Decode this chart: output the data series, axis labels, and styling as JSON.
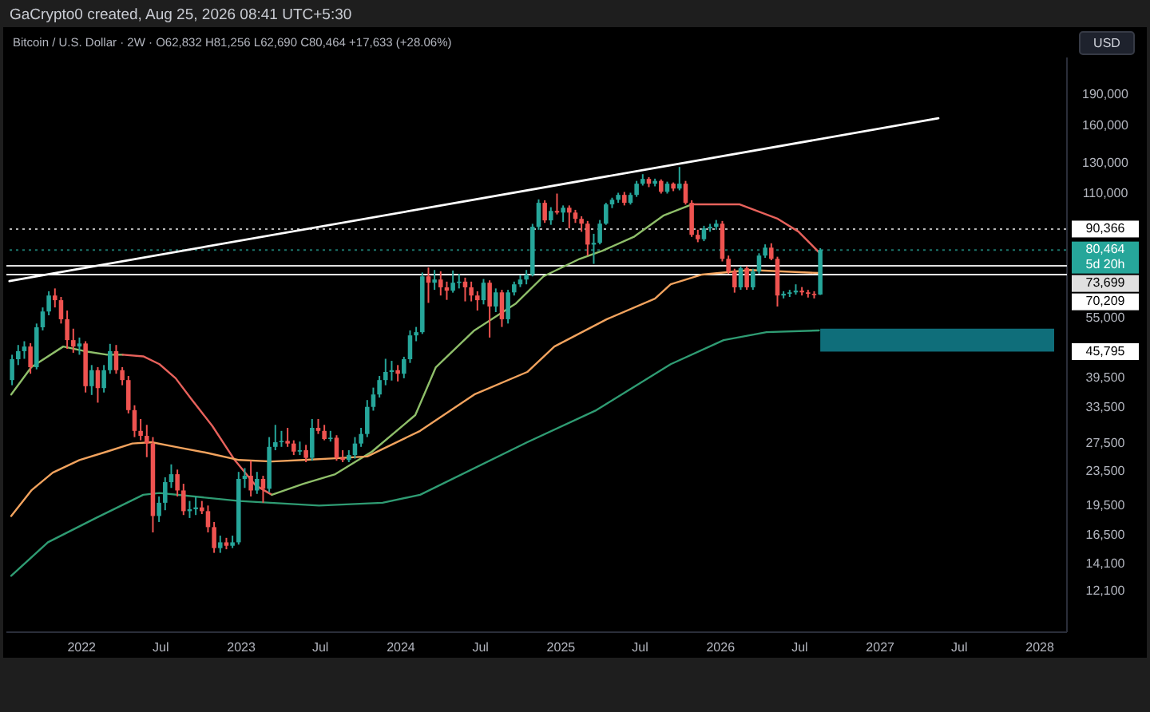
{
  "chart_data": {
    "type": "candlestick",
    "title": "GaCrypto0 created, Aug 25, 2026 08:41 UTC+5:30",
    "subtitle": "Bitcoin / U.S. Dollar · 2W · O62,832 H81,256 L62,690 C80,464 +17,633 (+28.06%)",
    "log": "y",
    "xlim": [
      "2021-07-13",
      "2028-03-03"
    ],
    "xticks": [
      {
        "value": "2022-01-01",
        "label": "2022"
      },
      {
        "value": "2022-07-01",
        "label": "Jul"
      },
      {
        "value": "2023-01-01",
        "label": "2023"
      },
      {
        "value": "2023-07-01",
        "label": "Jul"
      },
      {
        "value": "2024-01-01",
        "label": "2024"
      },
      {
        "value": "2024-07-01",
        "label": "Jul"
      },
      {
        "value": "2025-01-01",
        "label": "2025"
      },
      {
        "value": "2025-07-01",
        "label": "Jul"
      },
      {
        "value": "2026-01-01",
        "label": "2026"
      },
      {
        "value": "2026-07-01",
        "label": "Jul"
      },
      {
        "value": "2027-01-01",
        "label": "2027"
      },
      {
        "value": "2027-07-01",
        "label": "Jul"
      },
      {
        "value": "2028-01-01",
        "label": "2028"
      }
    ],
    "ylim": [
      9660,
      234000
    ],
    "yticks": [
      {
        "value": 190000,
        "label": "190,000"
      },
      {
        "value": 160000,
        "label": "160,000"
      },
      {
        "value": 130000,
        "label": "130,000"
      },
      {
        "value": 110000,
        "label": "110,000"
      },
      {
        "value": 55000,
        "label": "55,000"
      },
      {
        "value": 39500,
        "label": "39,500"
      },
      {
        "value": 33500,
        "label": "33,500"
      },
      {
        "value": 27500,
        "label": "27,500"
      },
      {
        "value": 23500,
        "label": "23,500"
      },
      {
        "value": 19500,
        "label": "19,500"
      },
      {
        "value": 16500,
        "label": "16,500"
      },
      {
        "value": 14100,
        "label": "14,100"
      },
      {
        "value": 12100,
        "label": "12,100"
      }
    ],
    "x": [
      "2021-07-26",
      "2021-08-09",
      "2021-08-23",
      "2021-09-06",
      "2021-09-20",
      "2021-10-04",
      "2021-10-18",
      "2021-11-01",
      "2021-11-15",
      "2021-11-29",
      "2021-12-13",
      "2021-12-27",
      "2022-01-10",
      "2022-01-24",
      "2022-02-07",
      "2022-02-21",
      "2022-03-07",
      "2022-03-21",
      "2022-04-04",
      "2022-04-18",
      "2022-05-02",
      "2022-05-16",
      "2022-05-30",
      "2022-06-13",
      "2022-06-27",
      "2022-07-11",
      "2022-07-25",
      "2022-08-08",
      "2022-08-22",
      "2022-09-05",
      "2022-09-19",
      "2022-10-03",
      "2022-10-17",
      "2022-10-31",
      "2022-11-14",
      "2022-11-28",
      "2022-12-12",
      "2022-12-26",
      "2023-01-09",
      "2023-01-23",
      "2023-02-06",
      "2023-02-20",
      "2023-03-06",
      "2023-03-20",
      "2023-04-03",
      "2023-04-17",
      "2023-05-01",
      "2023-05-15",
      "2023-05-29",
      "2023-06-12",
      "2023-06-26",
      "2023-07-10",
      "2023-07-24",
      "2023-08-07",
      "2023-08-21",
      "2023-09-04",
      "2023-09-18",
      "2023-10-02",
      "2023-10-16",
      "2023-10-30",
      "2023-11-13",
      "2023-11-27",
      "2023-12-11",
      "2023-12-25",
      "2024-01-08",
      "2024-01-22",
      "2024-02-05",
      "2024-02-19",
      "2024-03-04",
      "2024-03-18",
      "2024-04-01",
      "2024-04-15",
      "2024-04-29",
      "2024-05-13",
      "2024-05-27",
      "2024-06-10",
      "2024-06-24",
      "2024-07-08",
      "2024-07-22",
      "2024-08-05",
      "2024-08-19",
      "2024-09-02",
      "2024-09-16",
      "2024-09-30",
      "2024-10-14",
      "2024-10-28",
      "2024-11-11",
      "2024-11-25",
      "2024-12-09",
      "2024-12-23",
      "2025-01-06",
      "2025-01-20",
      "2025-02-03",
      "2025-02-17",
      "2025-03-03",
      "2025-03-17",
      "2025-03-31",
      "2025-04-14",
      "2025-04-28",
      "2025-05-12",
      "2025-05-26",
      "2025-06-09",
      "2025-06-23",
      "2025-07-07",
      "2025-07-21",
      "2025-08-04",
      "2025-08-18",
      "2025-09-01",
      "2025-09-15",
      "2025-09-29",
      "2025-10-13",
      "2025-10-27",
      "2025-11-10",
      "2025-11-24",
      "2025-12-08",
      "2025-12-22",
      "2026-01-05",
      "2026-01-19",
      "2026-02-02",
      "2026-02-16",
      "2026-03-02",
      "2026-03-16",
      "2026-03-30",
      "2026-04-13",
      "2026-04-27",
      "2026-05-11",
      "2026-05-25",
      "2026-06-08",
      "2026-06-22",
      "2026-07-06",
      "2026-07-20",
      "2026-08-03",
      "2026-08-17"
    ],
    "colors": [
      "#26a69a",
      "#26a69a",
      "#26a69a",
      "#ef5350",
      "#26a69a",
      "#26a69a",
      "#26a69a",
      "#ef5350",
      "#ef5350",
      "#ef5350",
      "#ef5350",
      "#26a69a",
      "#ef5350",
      "#26a69a",
      "#ef5350",
      "#26a69a",
      "#26a69a",
      "#ef5350",
      "#ef5350",
      "#ef5350",
      "#ef5350",
      "#ef5350",
      "#ef5350",
      "#ef5350",
      "#26a69a",
      "#26a69a",
      "#26a69a",
      "#ef5350",
      "#ef5350",
      "#26a69a",
      "#26a69a",
      "#ef5350",
      "#ef5350",
      "#ef5350",
      "#26a69a",
      "#ef5350",
      "#26a69a",
      "#26a69a",
      "#26a69a",
      "#ef5350",
      "#26a69a",
      "#ef5350",
      "#26a69a",
      "#26a69a",
      "#26a69a",
      "#ef5350",
      "#ef5350",
      "#26a69a",
      "#ef5350",
      "#26a69a",
      "#ef5350",
      "#ef5350",
      "#26a69a",
      "#ef5350",
      "#ef5350",
      "#26a69a",
      "#26a69a",
      "#26a69a",
      "#26a69a",
      "#26a69a",
      "#26a69a",
      "#26a69a",
      "#26a69a",
      "#ef5350",
      "#26a69a",
      "#26a69a",
      "#26a69a",
      "#26a69a",
      "#ef5350",
      "#26a69a",
      "#ef5350",
      "#ef5350",
      "#26a69a",
      "#26a69a",
      "#ef5350",
      "#ef5350",
      "#ef5350",
      "#26a69a",
      "#ef5350",
      "#26a69a",
      "#ef5350",
      "#26a69a",
      "#26a69a",
      "#26a69a",
      "#26a69a",
      "#26a69a",
      "#26a69a",
      "#ef5350",
      "#26a69a",
      "#ef5350",
      "#26a69a",
      "#ef5350",
      "#ef5350",
      "#ef5350",
      "#ef5350",
      "#26a69a",
      "#26a69a",
      "#26a69a",
      "#26a69a",
      "#26a69a",
      "#ef5350",
      "#26a69a",
      "#26a69a",
      "#26a69a",
      "#ef5350",
      "#26a69a",
      "#ef5350",
      "#26a69a",
      "#ef5350",
      "#26a69a",
      "#ef5350",
      "#ef5350",
      "#ef5350",
      "#26a69a",
      "#26a69a",
      "#26a69a",
      "#ef5350",
      "#ef5350",
      "#ef5350",
      "#26a69a",
      "#ef5350",
      "#26a69a",
      "#26a69a",
      "#26a69a",
      "#ef5350",
      "#ef5350",
      "#26a69a",
      "#26a69a",
      "#26a69a",
      "#ef5350",
      "#ef5350",
      "#ef5350",
      "#26a69a"
    ],
    "ohlc": [
      [
        39100,
        45000,
        38000,
        43900
      ],
      [
        43900,
        47500,
        42500,
        45900
      ],
      [
        45900,
        48500,
        44000,
        47100
      ],
      [
        47100,
        48000,
        40500,
        42000
      ],
      [
        42000,
        53500,
        41500,
        52400
      ],
      [
        52400,
        58500,
        51500,
        57200
      ],
      [
        57200,
        64000,
        56000,
        62500
      ],
      [
        62500,
        65000,
        58500,
        60900
      ],
      [
        60900,
        62000,
        53500,
        54800
      ],
      [
        54800,
        57500,
        46500,
        48800
      ],
      [
        48800,
        52000,
        45500,
        47100
      ],
      [
        47100,
        49500,
        45000,
        47900
      ],
      [
        47900,
        48500,
        36500,
        37800
      ],
      [
        37800,
        42500,
        36000,
        41300
      ],
      [
        41300,
        42000,
        34500,
        37400
      ],
      [
        37400,
        42500,
        36500,
        41300
      ],
      [
        41300,
        47800,
        40500,
        45900
      ],
      [
        45900,
        47500,
        40500,
        41300
      ],
      [
        41300,
        42000,
        38000,
        39100
      ],
      [
        39100,
        40000,
        32500,
        33100
      ],
      [
        33100,
        34000,
        28500,
        29500
      ],
      [
        29500,
        31500,
        28000,
        28700
      ],
      [
        28700,
        30500,
        25500,
        27500
      ],
      [
        27500,
        28500,
        16800,
        18400
      ],
      [
        18400,
        20500,
        17800,
        19800
      ],
      [
        19800,
        22800,
        19000,
        22200
      ],
      [
        22200,
        24500,
        21500,
        23200
      ],
      [
        23200,
        23800,
        20500,
        21200
      ],
      [
        21200,
        22000,
        18500,
        18900
      ],
      [
        18900,
        20000,
        18200,
        19100
      ],
      [
        19100,
        20500,
        18500,
        19300
      ],
      [
        19300,
        20000,
        18600,
        18900
      ],
      [
        18900,
        19500,
        16800,
        17300
      ],
      [
        17300,
        17800,
        15000,
        15400
      ],
      [
        15400,
        16500,
        15000,
        15900
      ],
      [
        15900,
        16300,
        15300,
        15600
      ],
      [
        15600,
        16500,
        15400,
        15900
      ],
      [
        15900,
        23500,
        15700,
        22600
      ],
      [
        22600,
        24000,
        21500,
        23000
      ],
      [
        23000,
        25000,
        20500,
        21200
      ],
      [
        21200,
        23500,
        20800,
        22600
      ],
      [
        22600,
        23000,
        19800,
        21400
      ],
      [
        21400,
        28500,
        21000,
        27000
      ],
      [
        27000,
        30500,
        26500,
        27700
      ],
      [
        27700,
        29500,
        27000,
        27900
      ],
      [
        27900,
        30000,
        27000,
        27500
      ],
      [
        27500,
        28000,
        25800,
        26300
      ],
      [
        26300,
        27800,
        25800,
        26500
      ],
      [
        26500,
        27300,
        24800,
        25400
      ],
      [
        25400,
        31500,
        25000,
        30000
      ],
      [
        30000,
        31500,
        29000,
        29500
      ],
      [
        29500,
        30500,
        28000,
        28200
      ],
      [
        28200,
        29500,
        27800,
        28400
      ],
      [
        28400,
        28800,
        25000,
        25400
      ],
      [
        25400,
        26500,
        24800,
        25100
      ],
      [
        25100,
        26500,
        24800,
        25800
      ],
      [
        25800,
        28500,
        25300,
        27500
      ],
      [
        27500,
        30000,
        27000,
        29000
      ],
      [
        29000,
        35000,
        28500,
        33700
      ],
      [
        33700,
        37500,
        33000,
        36100
      ],
      [
        36100,
        40000,
        35500,
        39100
      ],
      [
        39100,
        44000,
        38000,
        40900
      ],
      [
        40900,
        43500,
        39000,
        41300
      ],
      [
        41300,
        42500,
        38800,
        40500
      ],
      [
        40500,
        44500,
        39500,
        43900
      ],
      [
        43900,
        51500,
        43000,
        50100
      ],
      [
        50100,
        52500,
        48500,
        51000
      ],
      [
        51000,
        71000,
        50500,
        69500
      ],
      [
        69500,
        73000,
        60000,
        67100
      ],
      [
        67100,
        72000,
        64500,
        68300
      ],
      [
        68300,
        71500,
        62500,
        65400
      ],
      [
        65400,
        67500,
        61000,
        64200
      ],
      [
        64200,
        71800,
        63500,
        67100
      ],
      [
        67100,
        70500,
        65000,
        67500
      ],
      [
        67500,
        69000,
        60500,
        65400
      ],
      [
        65400,
        67500,
        60500,
        62500
      ],
      [
        62500,
        64000,
        57500,
        60900
      ],
      [
        60900,
        68500,
        59500,
        67100
      ],
      [
        67100,
        68000,
        49500,
        58800
      ],
      [
        58800,
        65000,
        57000,
        63600
      ],
      [
        63600,
        64500,
        52500,
        54800
      ],
      [
        54800,
        64500,
        53500,
        63600
      ],
      [
        63600,
        67500,
        62500,
        66500
      ],
      [
        66500,
        70000,
        65500,
        68300
      ],
      [
        68300,
        72000,
        66500,
        70200
      ],
      [
        70200,
        93000,
        69500,
        91500
      ],
      [
        91500,
        106500,
        90000,
        104500
      ],
      [
        104500,
        106000,
        93500,
        94800
      ],
      [
        94800,
        102000,
        92500,
        99900
      ],
      [
        99900,
        110000,
        98000,
        99000
      ],
      [
        99000,
        103000,
        94000,
        101700
      ],
      [
        101700,
        103000,
        90700,
        99000
      ],
      [
        99000,
        100500,
        93500,
        95600
      ],
      [
        95600,
        97000,
        89000,
        93100
      ],
      [
        93100,
        94500,
        78000,
        82900
      ],
      [
        82900,
        88000,
        74500,
        83700
      ],
      [
        83700,
        95000,
        83000,
        93100
      ],
      [
        93100,
        104500,
        92500,
        103600
      ],
      [
        103600,
        107500,
        101500,
        106300
      ],
      [
        106300,
        110500,
        104500,
        109200
      ],
      [
        109200,
        111000,
        103000,
        104500
      ],
      [
        104500,
        110500,
        103500,
        109200
      ],
      [
        109200,
        118000,
        108000,
        116200
      ],
      [
        116200,
        122500,
        115000,
        119300
      ],
      [
        119300,
        120500,
        114000,
        116200
      ],
      [
        116200,
        119500,
        114500,
        118000
      ],
      [
        118000,
        119000,
        110000,
        111100
      ],
      [
        111100,
        117500,
        110000,
        116200
      ],
      [
        116200,
        117000,
        111500,
        113100
      ],
      [
        113100,
        127500,
        112000,
        116200
      ],
      [
        116200,
        118000,
        103500,
        104500
      ],
      [
        104500,
        106000,
        86500,
        87500
      ],
      [
        87500,
        90000,
        84000,
        85400
      ],
      [
        85400,
        92000,
        84500,
        90700
      ],
      [
        90700,
        93000,
        89000,
        91500
      ],
      [
        91500,
        95000,
        90000,
        93100
      ],
      [
        93100,
        94500,
        75500,
        76600
      ],
      [
        76600,
        78000,
        70500,
        71400
      ],
      [
        71400,
        72500,
        63500,
        65400
      ],
      [
        65400,
        73500,
        64500,
        72700
      ],
      [
        72700,
        73500,
        64500,
        65400
      ],
      [
        65400,
        72500,
        64500,
        71400
      ],
      [
        71400,
        79000,
        70500,
        78000
      ],
      [
        78000,
        83000,
        77000,
        81500
      ],
      [
        81500,
        83500,
        76000,
        76600
      ],
      [
        76600,
        77500,
        58800,
        62500
      ],
      [
        62500,
        64000,
        61500,
        63100
      ],
      [
        63100,
        64500,
        62000,
        63600
      ],
      [
        63600,
        66500,
        62800,
        64200
      ],
      [
        64200,
        65500,
        62500,
        63600
      ],
      [
        63600,
        64500,
        61800,
        63100
      ],
      [
        63100,
        64000,
        61500,
        62831
      ],
      [
        62832,
        81256,
        62690,
        80464
      ]
    ],
    "series": [
      {
        "type": "line",
        "color": "#8fbf6a",
        "x": [
          "2021-07-24",
          "2021-09-08",
          "2021-11-20",
          "2022-01-08",
          "2022-02-28",
          "2022-04-05"
        ],
        "values": [
          36100,
          42000,
          47100,
          45900,
          45000,
          45000
        ]
      },
      {
        "type": "line",
        "color": "#e8625c",
        "x": [
          "2022-04-05",
          "2022-05-22",
          "2022-06-28",
          "2022-08-04",
          "2022-09-09",
          "2022-10-27",
          "2022-12-17",
          "2023-02-03",
          "2023-03-12"
        ],
        "values": [
          45000,
          44600,
          42700,
          39500,
          35200,
          30300,
          25100,
          21800,
          20700
        ]
      },
      {
        "type": "line",
        "color": "#8fbf6a",
        "x": [
          "2023-03-12",
          "2023-05-23",
          "2023-08-04",
          "2023-10-27",
          "2024-02-03",
          "2024-03-21",
          "2024-06-17",
          "2024-09-20",
          "2024-11-22",
          "2025-02-13",
          "2025-04-06",
          "2025-06-18",
          "2025-08-23",
          "2025-10-27"
        ],
        "values": [
          20700,
          22000,
          23200,
          26300,
          32200,
          42000,
          51500,
          59800,
          69500,
          76600,
          80100,
          86700,
          97300,
          103600
        ]
      },
      {
        "type": "line",
        "color": "#e8625c",
        "x": [
          "2025-10-27",
          "2025-12-28",
          "2026-02-14",
          "2026-05-12",
          "2026-06-28",
          "2026-08-14"
        ],
        "values": [
          103600,
          103600,
          103600,
          95600,
          89100,
          79400
        ]
      },
      {
        "type": "line",
        "color": "#f2a35e",
        "x": [
          "2021-07-24",
          "2021-09-08",
          "2021-10-27",
          "2021-12-27",
          "2022-02-28",
          "2022-04-27",
          "2022-06-10",
          "2022-08-04",
          "2022-10-16",
          "2022-12-27",
          "2023-03-12",
          "2023-05-23",
          "2023-08-22",
          "2023-10-16",
          "2024-02-14",
          "2024-06-17",
          "2024-10-16",
          "2024-12-17",
          "2025-04-16",
          "2025-08-04",
          "2025-09-09",
          "2025-11-20",
          "2026-03-10",
          "2026-08-14"
        ],
        "values": [
          18400,
          21200,
          23400,
          25100,
          26300,
          27500,
          27700,
          27000,
          26100,
          25100,
          24900,
          25100,
          25400,
          25600,
          29500,
          36100,
          40900,
          47100,
          54800,
          61400,
          66500,
          70200,
          72000,
          70800
        ]
      },
      {
        "type": "line",
        "color": "#2f9c73",
        "x": [
          "2021-07-24",
          "2021-10-16",
          "2022-02-03",
          "2022-05-22",
          "2022-06-28",
          "2022-12-27",
          "2023-06-28",
          "2023-11-20",
          "2024-02-14",
          "2024-10-16",
          "2025-03-23",
          "2025-09-09",
          "2026-01-08",
          "2026-04-16",
          "2026-08-14"
        ],
        "values": [
          13200,
          15900,
          18200,
          20700,
          20900,
          20000,
          19500,
          19800,
          20700,
          27700,
          33100,
          42700,
          48800,
          51000,
          51500
        ]
      },
      {
        "type": "line",
        "color": "#ffffff",
        "x": [
          "2021-07-20",
          "2027-05-14"
        ],
        "values": [
          67700,
          167000
        ]
      }
    ],
    "ref_lines": [
      {
        "axis": "y",
        "value": 90366,
        "label": "90,366",
        "color": "#ffffff",
        "line_style": "dotted"
      },
      {
        "axis": "y",
        "value": 80464,
        "label": "80,464\n5d 20h",
        "color": "#26a69a",
        "line_style": "dotted"
      },
      {
        "axis": "y",
        "value": 73699,
        "label": "73,699",
        "color": "#e0e0e0",
        "line_style": "solid"
      },
      {
        "axis": "y",
        "value": 70209,
        "label": "70,209",
        "color": "#ffffff",
        "line_style": "solid"
      }
    ],
    "bands": [
      {
        "axis": "y",
        "from": 45795,
        "to": 52000,
        "label": "45,795",
        "color": "#0f6e7a"
      }
    ],
    "ylabel": "USD"
  }
}
